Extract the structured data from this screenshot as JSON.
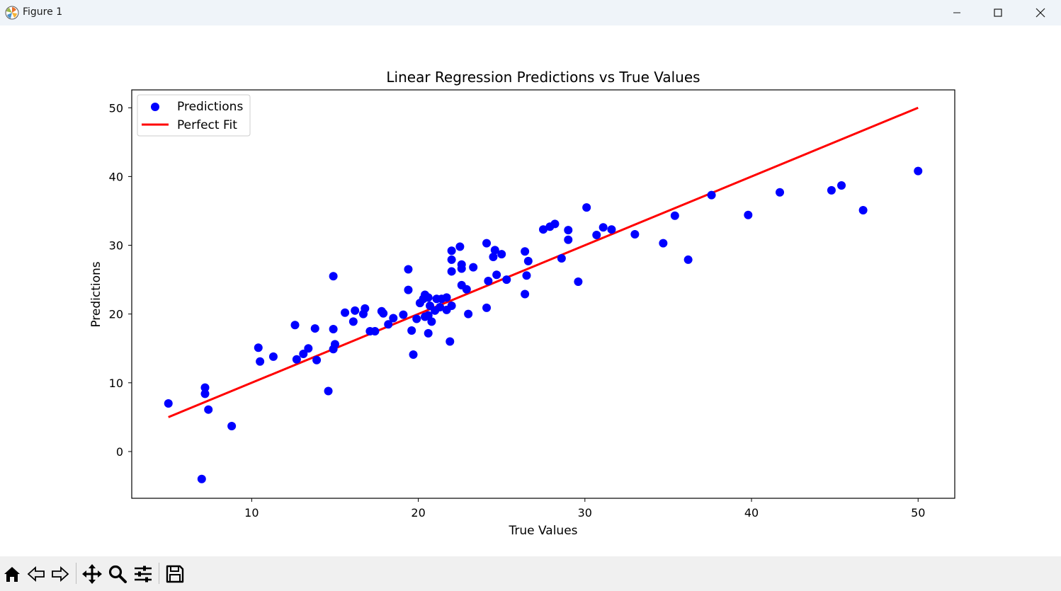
{
  "window": {
    "title": "Figure 1"
  },
  "toolbar": {
    "buttons": [
      "home-icon",
      "back-icon",
      "forward-icon",
      "pan-icon",
      "zoom-icon",
      "configure-subplots-icon",
      "save-icon"
    ]
  },
  "colors": {
    "points": "#0000ff",
    "fit_line": "#ff0000",
    "titlebar": "#eff4f9",
    "toolbar": "#f0f0f0"
  },
  "chart_data": {
    "type": "scatter",
    "title": "Linear Regression Predictions vs True Values",
    "xlabel": "True Values",
    "ylabel": "Predictions",
    "xlim": [
      2.8,
      52.2
    ],
    "ylim": [
      -6.8,
      52.6
    ],
    "xticks": [
      10,
      20,
      30,
      40,
      50
    ],
    "yticks": [
      0,
      10,
      20,
      30,
      40,
      50
    ],
    "grid": false,
    "legend": {
      "position": "top-left",
      "entries": [
        "Predictions",
        "Perfect Fit"
      ]
    },
    "series": [
      {
        "name": "Predictions",
        "kind": "scatter",
        "color": "#0000ff",
        "points": [
          [
            5.0,
            7.0
          ],
          [
            7.0,
            -4.0
          ],
          [
            7.2,
            9.3
          ],
          [
            7.2,
            8.4
          ],
          [
            7.4,
            6.1
          ],
          [
            8.8,
            3.7
          ],
          [
            10.4,
            15.1
          ],
          [
            10.5,
            13.1
          ],
          [
            11.3,
            13.8
          ],
          [
            12.6,
            18.4
          ],
          [
            12.7,
            13.4
          ],
          [
            13.1,
            14.2
          ],
          [
            13.4,
            15.0
          ],
          [
            13.8,
            17.9
          ],
          [
            13.9,
            13.3
          ],
          [
            14.6,
            8.8
          ],
          [
            14.9,
            25.5
          ],
          [
            14.9,
            17.8
          ],
          [
            15.0,
            15.6
          ],
          [
            14.9,
            14.9
          ],
          [
            15.6,
            20.2
          ],
          [
            16.1,
            18.9
          ],
          [
            16.2,
            20.5
          ],
          [
            16.7,
            20.0
          ],
          [
            16.8,
            20.8
          ],
          [
            17.1,
            17.5
          ],
          [
            17.4,
            17.5
          ],
          [
            17.8,
            20.4
          ],
          [
            17.9,
            20.1
          ],
          [
            18.2,
            18.5
          ],
          [
            18.5,
            19.4
          ],
          [
            19.1,
            19.9
          ],
          [
            19.4,
            26.5
          ],
          [
            19.4,
            23.5
          ],
          [
            19.6,
            17.6
          ],
          [
            19.7,
            14.1
          ],
          [
            19.9,
            19.3
          ],
          [
            20.1,
            21.6
          ],
          [
            20.3,
            22.2
          ],
          [
            20.4,
            22.8
          ],
          [
            20.4,
            19.6
          ],
          [
            20.6,
            17.2
          ],
          [
            20.6,
            19.8
          ],
          [
            20.6,
            22.4
          ],
          [
            20.7,
            21.2
          ],
          [
            20.8,
            18.9
          ],
          [
            21.0,
            20.5
          ],
          [
            21.1,
            22.2
          ],
          [
            21.3,
            21.0
          ],
          [
            21.4,
            22.2
          ],
          [
            21.7,
            20.6
          ],
          [
            21.7,
            22.4
          ],
          [
            21.9,
            16.0
          ],
          [
            22.0,
            29.2
          ],
          [
            22.0,
            27.9
          ],
          [
            22.0,
            26.2
          ],
          [
            22.0,
            21.2
          ],
          [
            22.5,
            29.8
          ],
          [
            22.6,
            27.2
          ],
          [
            22.6,
            26.6
          ],
          [
            22.6,
            24.2
          ],
          [
            22.9,
            23.6
          ],
          [
            23.0,
            20.0
          ],
          [
            23.3,
            26.8
          ],
          [
            24.1,
            30.3
          ],
          [
            24.1,
            20.9
          ],
          [
            24.2,
            24.8
          ],
          [
            24.5,
            28.3
          ],
          [
            24.6,
            29.3
          ],
          [
            24.7,
            25.7
          ],
          [
            25.0,
            28.7
          ],
          [
            25.3,
            25.0
          ],
          [
            26.4,
            29.1
          ],
          [
            26.4,
            22.9
          ],
          [
            26.5,
            25.6
          ],
          [
            26.6,
            27.7
          ],
          [
            27.5,
            32.3
          ],
          [
            27.9,
            32.7
          ],
          [
            28.2,
            33.1
          ],
          [
            28.6,
            28.1
          ],
          [
            29.0,
            32.2
          ],
          [
            29.0,
            30.8
          ],
          [
            29.6,
            24.7
          ],
          [
            30.1,
            35.5
          ],
          [
            30.7,
            31.5
          ],
          [
            31.1,
            32.6
          ],
          [
            31.6,
            32.3
          ],
          [
            33.0,
            31.6
          ],
          [
            34.7,
            30.3
          ],
          [
            35.4,
            34.3
          ],
          [
            36.2,
            27.9
          ],
          [
            37.6,
            37.3
          ],
          [
            39.8,
            34.4
          ],
          [
            41.7,
            37.7
          ],
          [
            44.8,
            38.0
          ],
          [
            45.4,
            38.7
          ],
          [
            46.7,
            35.1
          ],
          [
            50.0,
            40.8
          ]
        ]
      },
      {
        "name": "Perfect Fit",
        "kind": "line",
        "color": "#ff0000",
        "x": [
          5.0,
          50.0
        ],
        "y": [
          5.0,
          50.0
        ]
      }
    ]
  }
}
